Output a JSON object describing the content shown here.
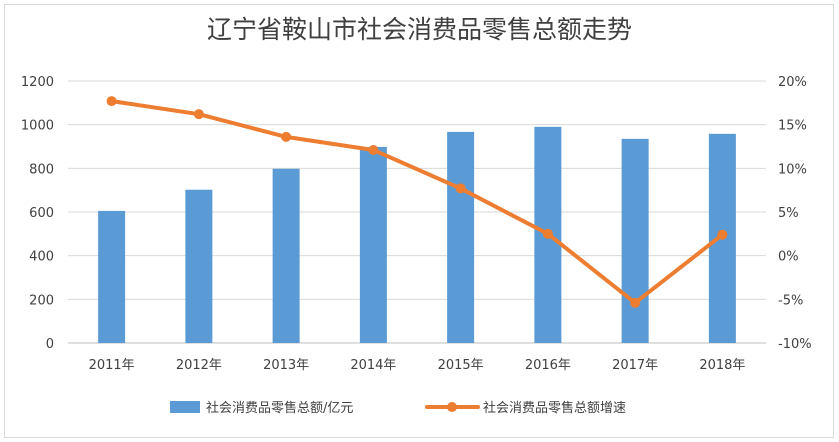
{
  "chart_data": {
    "type": "bar",
    "title": "辽宁省鞍山市社会消费品零售总额走势",
    "categories": [
      "2011年",
      "2012年",
      "2013年",
      "2014年",
      "2015年",
      "2016年",
      "2017年",
      "2018年"
    ],
    "series": [
      {
        "name": "社会消费品零售总额/亿元",
        "type": "bar",
        "axis": "left",
        "color": "#5b9bd5",
        "values": [
          605,
          702,
          798,
          898,
          967,
          990,
          935,
          958
        ]
      },
      {
        "name": "社会消费品零售总额增速",
        "type": "line",
        "axis": "right",
        "color": "#ed7d31",
        "values": [
          17.7,
          16.2,
          13.6,
          12.1,
          7.7,
          2.5,
          -5.4,
          2.4
        ]
      }
    ],
    "ylim_left": [
      0,
      1200
    ],
    "yticks_left": [
      "0",
      "200",
      "400",
      "600",
      "800",
      "1000",
      "1200"
    ],
    "ylim_right": [
      -10,
      20
    ],
    "yticks_right": [
      "-10%",
      "-5%",
      "0%",
      "5%",
      "10%",
      "15%",
      "20%"
    ],
    "grid": true,
    "legend_position": "bottom"
  }
}
